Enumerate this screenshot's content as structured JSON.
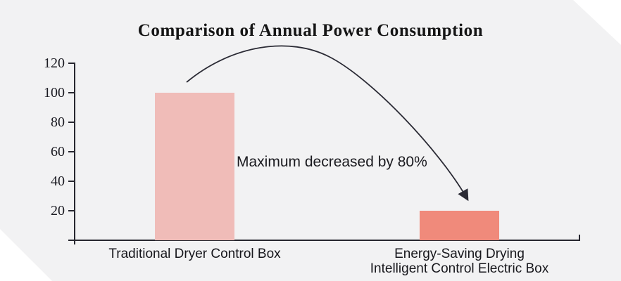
{
  "title": "Comparison of Annual Power Consumption",
  "annotation": "Maximum decreased by 80%",
  "colors": {
    "background": "#f2f2f3",
    "corner_cut": "#ffffff",
    "axis": "#27272f",
    "arrow": "#2b2b35",
    "title_text": "#151515",
    "label_text": "#17171c",
    "bar_traditional": "#f0bcb8",
    "bar_energy_saving": "#f08a7b"
  },
  "chart_data": {
    "type": "bar",
    "title": "Comparison of Annual Power Consumption",
    "annotation": "Maximum decreased by 80%",
    "categories": [
      "Traditional Dryer Control Box",
      "Energy-Saving Drying Intelligent Control Electric Box"
    ],
    "category_lines": [
      [
        "Traditional Dryer Control Box"
      ],
      [
        "Energy-Saving Drying",
        "Intelligent Control Electric Box"
      ]
    ],
    "values": [
      100,
      20
    ],
    "bar_colors": [
      "#f0bcb8",
      "#f08a7b"
    ],
    "yticks": [
      20,
      40,
      60,
      80,
      100,
      120
    ],
    "ylim": [
      0,
      123
    ],
    "xlabel": "",
    "ylabel": "",
    "grid": false,
    "legend": null
  }
}
